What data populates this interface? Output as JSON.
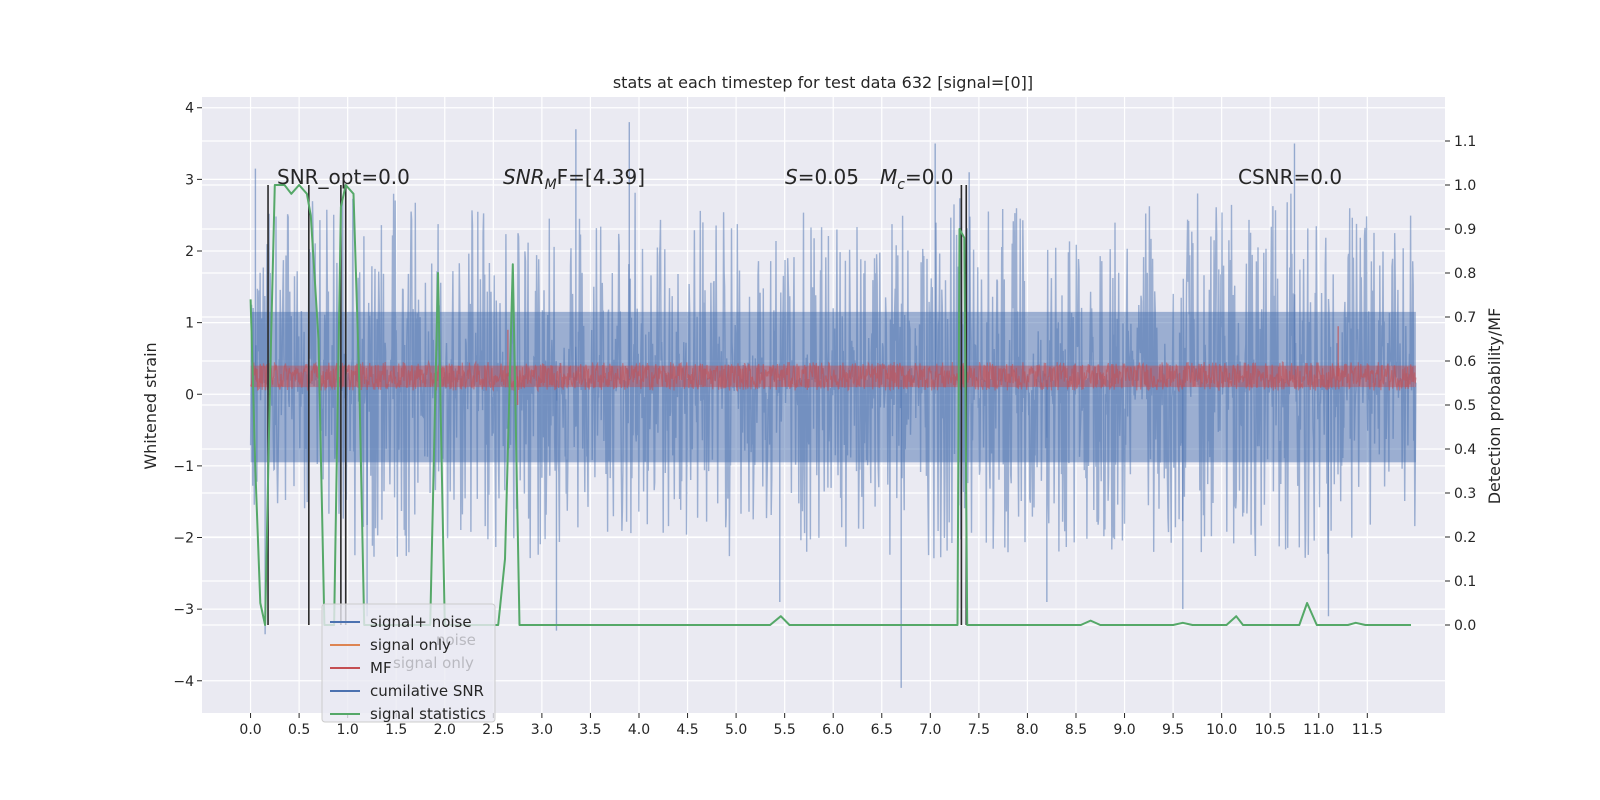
{
  "chart_data": {
    "type": "line",
    "title": "stats at each timestep for test data 632 [signal=[0]]",
    "xlabel": "",
    "ylabel": "Whitened strain",
    "ylabel_right": "Detection probability/MF",
    "xlim": [
      -0.5,
      12.3
    ],
    "ylim": [
      -4.45,
      4.15
    ],
    "ylim_right": [
      -0.2,
      1.2
    ],
    "x_ticks": [
      0.0,
      0.5,
      1.0,
      1.5,
      2.0,
      2.5,
      3.0,
      3.5,
      4.0,
      4.5,
      5.0,
      5.5,
      6.0,
      6.5,
      7.0,
      7.5,
      8.0,
      8.5,
      9.0,
      9.5,
      10.0,
      10.5,
      11.0,
      11.5
    ],
    "x_tick_labels": [
      "0.0",
      "0.5",
      "1.0",
      "1.5",
      "2.0",
      "2.5",
      "3.0",
      "3.5",
      "4.0",
      "4.5",
      "5.0",
      "5.5",
      "6.0",
      "6.5",
      "7.0",
      "7.5",
      "8.0",
      "8.5",
      "9.0",
      "9.5",
      "10.0",
      "10.5",
      "11.0",
      "11.5"
    ],
    "y_ticks": [
      -4,
      -3,
      -2,
      -1,
      0,
      1,
      2,
      3,
      4
    ],
    "y_tick_labels": [
      "−4",
      "−3",
      "−2",
      "−1",
      "0",
      "1",
      "2",
      "3",
      "4"
    ],
    "y_ticks_right": [
      0.0,
      0.1,
      0.2,
      0.3,
      0.4,
      0.5,
      0.6,
      0.7,
      0.8,
      0.9,
      1.0,
      1.1
    ],
    "y_tick_labels_right": [
      "0.0",
      "0.1",
      "0.2",
      "0.3",
      "0.4",
      "0.5",
      "0.6",
      "0.7",
      "0.8",
      "0.9",
      "1.0",
      "1.1"
    ],
    "grid": true,
    "legend": {
      "placement": "lower-left",
      "entries": [
        {
          "label": "signal+ noise",
          "color": "#4c72b0"
        },
        {
          "label": "signal only",
          "color": "#dd8452"
        },
        {
          "label": "MF",
          "color": "#c44e52"
        },
        {
          "label": "cumilative SNR",
          "color": "#4c72b0"
        },
        {
          "label": "signal statistics",
          "color": "#55a868"
        }
      ],
      "ghost_labels": [
        "noise",
        "signal only"
      ]
    },
    "annotations": {
      "snr_opt": "SNR_opt=0.0",
      "snr_mf_main": "SNR",
      "snr_mf_sub": "M",
      "snr_mf_tail": "F=[4.39]",
      "s_main": "S",
      "s_tail": "=0.05",
      "mc_main": "M",
      "mc_sub": "c",
      "mc_tail": "=0.0",
      "csnr": "CSNR=0.0"
    },
    "series": [
      {
        "name": "signal+ noise",
        "color": "#4c72b0",
        "axis": "left",
        "x_range": [
          0.0,
          12.0
        ],
        "envelope_upper": [
          [
            0.0,
            2.3
          ],
          [
            0.2,
            2.6
          ],
          [
            1.0,
            2.8
          ],
          [
            2.0,
            2.9
          ],
          [
            3.0,
            3.0
          ],
          [
            4.0,
            3.0
          ],
          [
            5.0,
            2.6
          ],
          [
            6.0,
            2.6
          ],
          [
            7.0,
            2.8
          ],
          [
            8.0,
            2.6
          ],
          [
            9.0,
            2.6
          ],
          [
            10.0,
            2.9
          ],
          [
            11.0,
            2.8
          ],
          [
            12.0,
            2.5
          ]
        ],
        "envelope_lower": [
          [
            0.0,
            -1.6
          ],
          [
            0.2,
            -1.8
          ],
          [
            1.0,
            -2.3
          ],
          [
            2.0,
            -2.3
          ],
          [
            3.0,
            -2.3
          ],
          [
            4.0,
            -2.1
          ],
          [
            5.0,
            -2.3
          ],
          [
            6.0,
            -2.2
          ],
          [
            7.0,
            -2.3
          ],
          [
            8.0,
            -2.4
          ],
          [
            9.0,
            -2.2
          ],
          [
            10.0,
            -2.3
          ],
          [
            11.0,
            -2.3
          ],
          [
            12.0,
            -1.9
          ]
        ],
        "spikes": [
          [
            0.05,
            3.15
          ],
          [
            0.15,
            -3.35
          ],
          [
            1.2,
            -3.1
          ],
          [
            3.15,
            -3.3
          ],
          [
            3.35,
            3.7
          ],
          [
            3.9,
            3.8
          ],
          [
            6.7,
            -4.1
          ],
          [
            5.45,
            -2.9
          ],
          [
            7.05,
            3.5
          ],
          [
            7.4,
            3.1
          ],
          [
            8.2,
            -2.9
          ],
          [
            9.6,
            -3.0
          ],
          [
            10.75,
            3.5
          ],
          [
            11.1,
            -3.1
          ]
        ]
      },
      {
        "name": "MF",
        "color": "#c44e52",
        "axis": "left",
        "x_range": [
          0.0,
          12.0
        ],
        "band_lower": 0.05,
        "band_upper": 0.45,
        "peaks": [
          [
            0.6,
            0.8
          ],
          [
            2.65,
            0.9
          ],
          [
            11.2,
            0.95
          ],
          [
            2.75,
            -0.15
          ]
        ]
      },
      {
        "name": "signal statistics",
        "color": "#55a868",
        "axis": "right",
        "points": [
          [
            0.0,
            0.74
          ],
          [
            0.05,
            0.35
          ],
          [
            0.1,
            0.05
          ],
          [
            0.15,
            0.0
          ],
          [
            0.2,
            0.55
          ],
          [
            0.25,
            1.0
          ],
          [
            0.35,
            1.0
          ],
          [
            0.42,
            0.98
          ],
          [
            0.5,
            1.0
          ],
          [
            0.58,
            0.98
          ],
          [
            0.62,
            0.93
          ],
          [
            0.7,
            0.65
          ],
          [
            0.76,
            0.0
          ],
          [
            0.86,
            0.0
          ],
          [
            0.93,
            0.95
          ],
          [
            0.98,
            1.0
          ],
          [
            1.06,
            0.98
          ],
          [
            1.12,
            0.55
          ],
          [
            1.17,
            0.0
          ],
          [
            1.85,
            0.0
          ],
          [
            1.93,
            0.8
          ],
          [
            2.0,
            0.0
          ],
          [
            2.55,
            0.0
          ],
          [
            2.62,
            0.15
          ],
          [
            2.7,
            0.82
          ],
          [
            2.77,
            0.0
          ],
          [
            5.35,
            0.0
          ],
          [
            5.46,
            0.02
          ],
          [
            5.55,
            0.0
          ],
          [
            6.6,
            0.0
          ],
          [
            6.62,
            0.0
          ],
          [
            7.28,
            0.0
          ],
          [
            7.3,
            0.9
          ],
          [
            7.35,
            0.88
          ],
          [
            7.38,
            0.0
          ],
          [
            8.55,
            0.0
          ],
          [
            8.65,
            0.01
          ],
          [
            8.75,
            0.0
          ],
          [
            9.5,
            0.0
          ],
          [
            9.6,
            0.005
          ],
          [
            9.7,
            0.0
          ],
          [
            10.05,
            0.0
          ],
          [
            10.15,
            0.02
          ],
          [
            10.22,
            0.0
          ],
          [
            10.8,
            0.0
          ],
          [
            10.88,
            0.05
          ],
          [
            10.98,
            0.0
          ],
          [
            11.3,
            0.0
          ],
          [
            11.38,
            0.005
          ],
          [
            11.48,
            0.0
          ],
          [
            11.95,
            0.0
          ]
        ]
      },
      {
        "name": "cumilative SNR",
        "color": "#2b2b2b",
        "axis": "right",
        "vlines": [
          [
            0.18,
            0.0,
            1.0
          ],
          [
            0.6,
            0.0,
            1.0
          ],
          [
            0.93,
            0.0,
            1.0
          ],
          [
            0.98,
            0.0,
            1.0
          ],
          [
            7.32,
            0.0,
            1.0
          ],
          [
            7.37,
            0.0,
            1.0
          ]
        ]
      }
    ]
  }
}
